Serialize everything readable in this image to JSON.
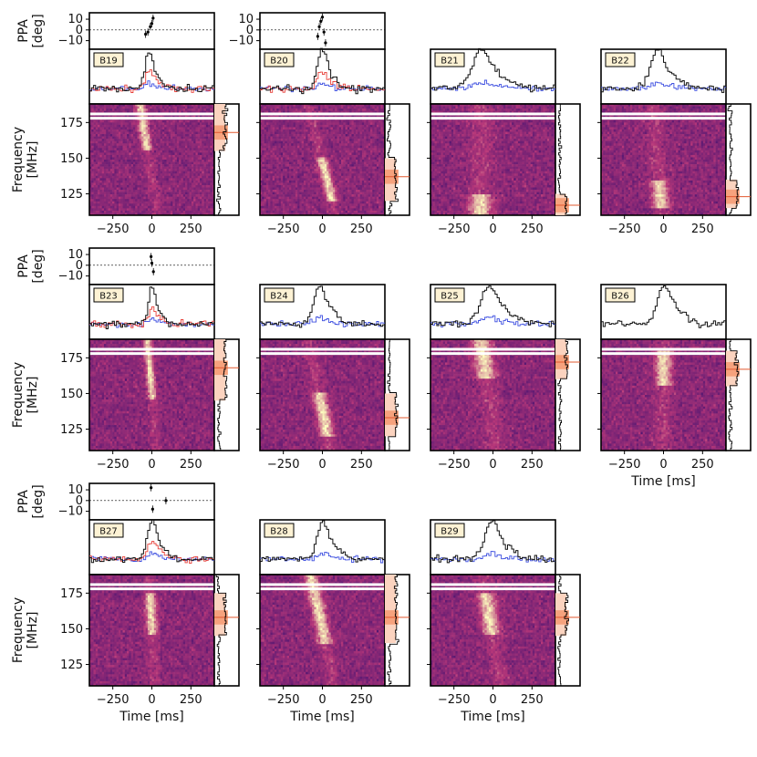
{
  "chart_data": {
    "type": "heatmap",
    "description_note": "",
    "xlabel": "Time [ms]",
    "ylabel_dynamic": "Frequency\n[MHz]",
    "ylabel_ppa": "PPA\n[deg]",
    "x_ticks": [
      -250,
      0,
      250
    ],
    "x_tick_labels": [
      "−250",
      "0",
      "250"
    ],
    "xlim": [
      -400,
      400
    ],
    "y_ticks": [
      125,
      150,
      175
    ],
    "y_tick_labels": [
      "125",
      "150",
      "175"
    ],
    "ylim": [
      110,
      188
    ],
    "ppa_ticks": [
      10,
      0,
      -10
    ],
    "ppa_tick_labels": [
      "10",
      "0",
      "−10"
    ],
    "ppa_lim": [
      -18,
      16
    ],
    "colors": {
      "total_intensity": "#111111",
      "linear_pol": "#e8413a",
      "circular_pol": "#3d4fe0",
      "spectrum_fill": "#f6a27d",
      "spectrum_fill_light": "#fbd3bf",
      "heat_low": "#3b0f70",
      "heat_mid": "#b73779",
      "heat_high": "#fcfdbf"
    },
    "bursts": [
      {
        "id": "B19",
        "row": 0,
        "col": 0,
        "has_ppa": true,
        "has_pol": true,
        "peak_time": -20,
        "width": 35,
        "drift": -60,
        "band": [
          155,
          188
        ],
        "spec_peak": 168,
        "ppa": [
          [
            -40,
            -4
          ],
          [
            -25,
            -2
          ],
          [
            -10,
            3
          ],
          [
            0,
            6
          ],
          [
            8,
            11
          ]
        ]
      },
      {
        "id": "B20",
        "row": 0,
        "col": 1,
        "has_ppa": true,
        "has_pol": true,
        "peak_time": -5,
        "width": 40,
        "drift": -90,
        "band": [
          120,
          150
        ],
        "spec_peak": 137,
        "ppa": [
          [
            -30,
            -6
          ],
          [
            -20,
            3
          ],
          [
            -10,
            8
          ],
          [
            0,
            12
          ],
          [
            10,
            -2
          ],
          [
            20,
            -12
          ]
        ]
      },
      {
        "id": "B21",
        "row": 0,
        "col": 2,
        "has_ppa": false,
        "has_pol": true,
        "peak_time": -80,
        "width": 80,
        "drift": 0,
        "band": [
          110,
          125
        ],
        "spec_peak": 117,
        "ppa": []
      },
      {
        "id": "B22",
        "row": 0,
        "col": 3,
        "has_ppa": false,
        "has_pol": true,
        "peak_time": -40,
        "width": 60,
        "drift": -30,
        "band": [
          115,
          135
        ],
        "spec_peak": 123,
        "ppa": []
      },
      {
        "id": "B23",
        "row": 1,
        "col": 0,
        "has_ppa": true,
        "has_pol": true,
        "peak_time": 0,
        "width": 30,
        "drift": -30,
        "band": [
          145,
          188
        ],
        "spec_peak": 168,
        "ppa": [
          [
            -5,
            8
          ],
          [
            0,
            2
          ],
          [
            10,
            -6
          ]
        ]
      },
      {
        "id": "B24",
        "row": 1,
        "col": 1,
        "has_ppa": false,
        "has_pol": true,
        "peak_time": -20,
        "width": 50,
        "drift": -70,
        "band": [
          120,
          150
        ],
        "spec_peak": 133,
        "ppa": []
      },
      {
        "id": "B25",
        "row": 1,
        "col": 2,
        "has_ppa": false,
        "has_pol": true,
        "peak_time": -30,
        "width": 70,
        "drift": -50,
        "band": [
          160,
          188
        ],
        "spec_peak": 172,
        "ppa": []
      },
      {
        "id": "B26",
        "row": 1,
        "col": 3,
        "has_ppa": false,
        "has_pol": false,
        "peak_time": 0,
        "width": 60,
        "drift": 0,
        "band": [
          155,
          180
        ],
        "spec_peak": 167,
        "ppa": []
      },
      {
        "id": "B27",
        "row": 2,
        "col": 0,
        "has_ppa": true,
        "has_pol": true,
        "peak_time": 0,
        "width": 40,
        "drift": -20,
        "band": [
          145,
          175
        ],
        "spec_peak": 158,
        "ppa": [
          [
            -5,
            12
          ],
          [
            5,
            -8
          ],
          [
            90,
            0
          ]
        ]
      },
      {
        "id": "B28",
        "row": 2,
        "col": 1,
        "has_ppa": false,
        "has_pol": true,
        "peak_time": 0,
        "width": 50,
        "drift": -80,
        "band": [
          140,
          188
        ],
        "spec_peak": 158,
        "ppa": []
      },
      {
        "id": "B29",
        "row": 2,
        "col": 2,
        "has_ppa": false,
        "has_pol": true,
        "peak_time": -10,
        "width": 60,
        "drift": -60,
        "band": [
          145,
          175
        ],
        "spec_peak": 158,
        "ppa": []
      }
    ],
    "bottom_xlabel_panels": [
      "B26",
      "B27",
      "B28",
      "B29"
    ],
    "ylabel_panels": [
      "B19",
      "B23",
      "B27"
    ],
    "ppa_ylabel_panels": [
      "B19",
      "B23",
      "B27"
    ]
  }
}
